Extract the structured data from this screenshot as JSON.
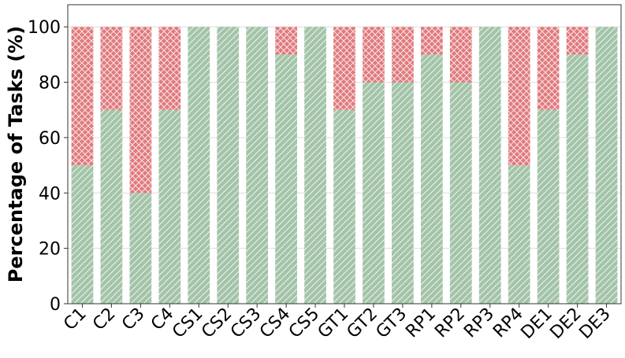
{
  "chart_data": {
    "type": "stacked_bar",
    "y_label": "Percentage of Tasks (%)",
    "categories": [
      "C1",
      "C2",
      "C3",
      "C4",
      "CS1",
      "CS2",
      "CS3",
      "CS4",
      "CS5",
      "GT1",
      "GT2",
      "GT3",
      "RP1",
      "RP2",
      "RP3",
      "RP4",
      "DE1",
      "DE2",
      "DE3"
    ],
    "series": [
      {
        "color": "#a3c4a8",
        "values": [
          50,
          70,
          40,
          70,
          100,
          100,
          100,
          90,
          100,
          70,
          80,
          80,
          90,
          80,
          100,
          50,
          70,
          90,
          100
        ]
      },
      {
        "color": "#e07a7d",
        "values": [
          50,
          30,
          60,
          30,
          0,
          0,
          0,
          10,
          0,
          30,
          20,
          20,
          10,
          20,
          0,
          50,
          30,
          10,
          0
        ]
      }
    ],
    "ylim": [
      0,
      108
    ],
    "yticks": [
      0,
      20,
      40,
      60,
      80,
      100
    ],
    "grid": true
  }
}
